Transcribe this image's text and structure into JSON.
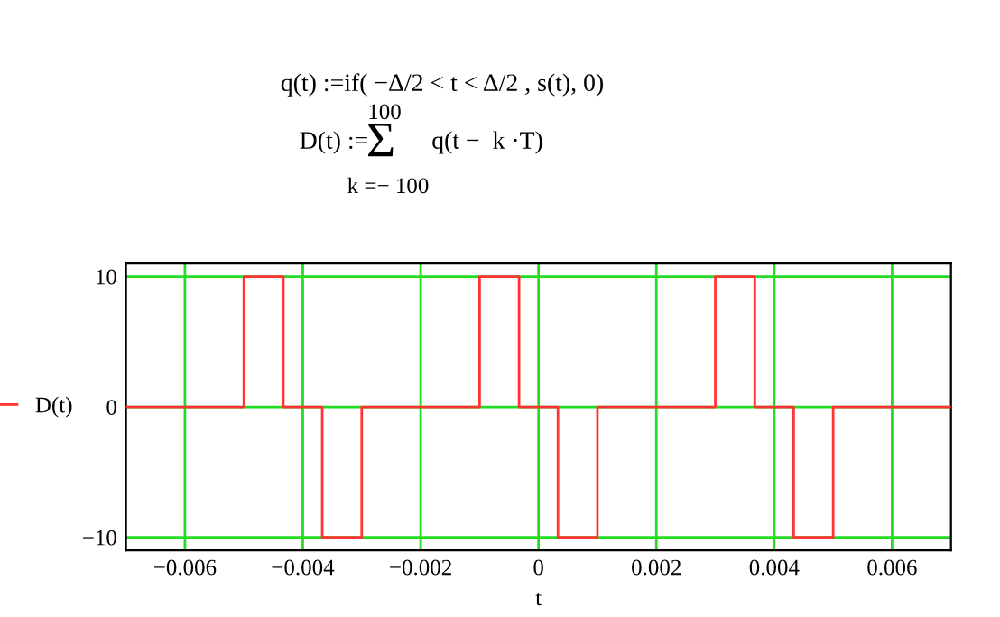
{
  "chart_data": {
    "type": "line",
    "xlabel": "t",
    "annotations": [
      "q(t) :=if( −Δ/2 < t < Δ/2 , s(t), 0)",
      "100",
      "D(t) :=",
      "Σ",
      "q(t −  k ·T)",
      "k =− 100"
    ],
    "x": [
      -0.007,
      -0.005,
      -0.005,
      -0.00433,
      -0.00433,
      -0.00367,
      -0.00367,
      -0.003,
      -0.003,
      -0.001,
      -0.001,
      -0.00033,
      -0.00033,
      0.00033,
      0.00033,
      0.001,
      0.001,
      0.003,
      0.003,
      0.00367,
      0.00367,
      0.00433,
      0.00433,
      0.005,
      0.005,
      0.007
    ],
    "series": [
      {
        "name": "D(t)",
        "color": "#ff3333",
        "values": [
          0,
          0,
          10,
          10,
          0,
          0,
          -10,
          -10,
          0,
          0,
          10,
          10,
          0,
          0,
          -10,
          -10,
          0,
          0,
          10,
          10,
          0,
          0,
          -10,
          -10,
          0,
          0
        ]
      }
    ],
    "xlim": [
      -0.007,
      0.007
    ],
    "xticks": [
      {
        "value": -0.006,
        "label": "−0.006"
      },
      {
        "value": -0.004,
        "label": "−0.004"
      },
      {
        "value": -0.002,
        "label": "−0.002"
      },
      0,
      0.002,
      0.004,
      0.006
    ],
    "ylim": [
      -11,
      11
    ],
    "yticks": [
      {
        "value": -10,
        "label": "−10"
      },
      0,
      10
    ],
    "grid": true,
    "legend": "left",
    "line_style": "solid",
    "marker": "none"
  }
}
